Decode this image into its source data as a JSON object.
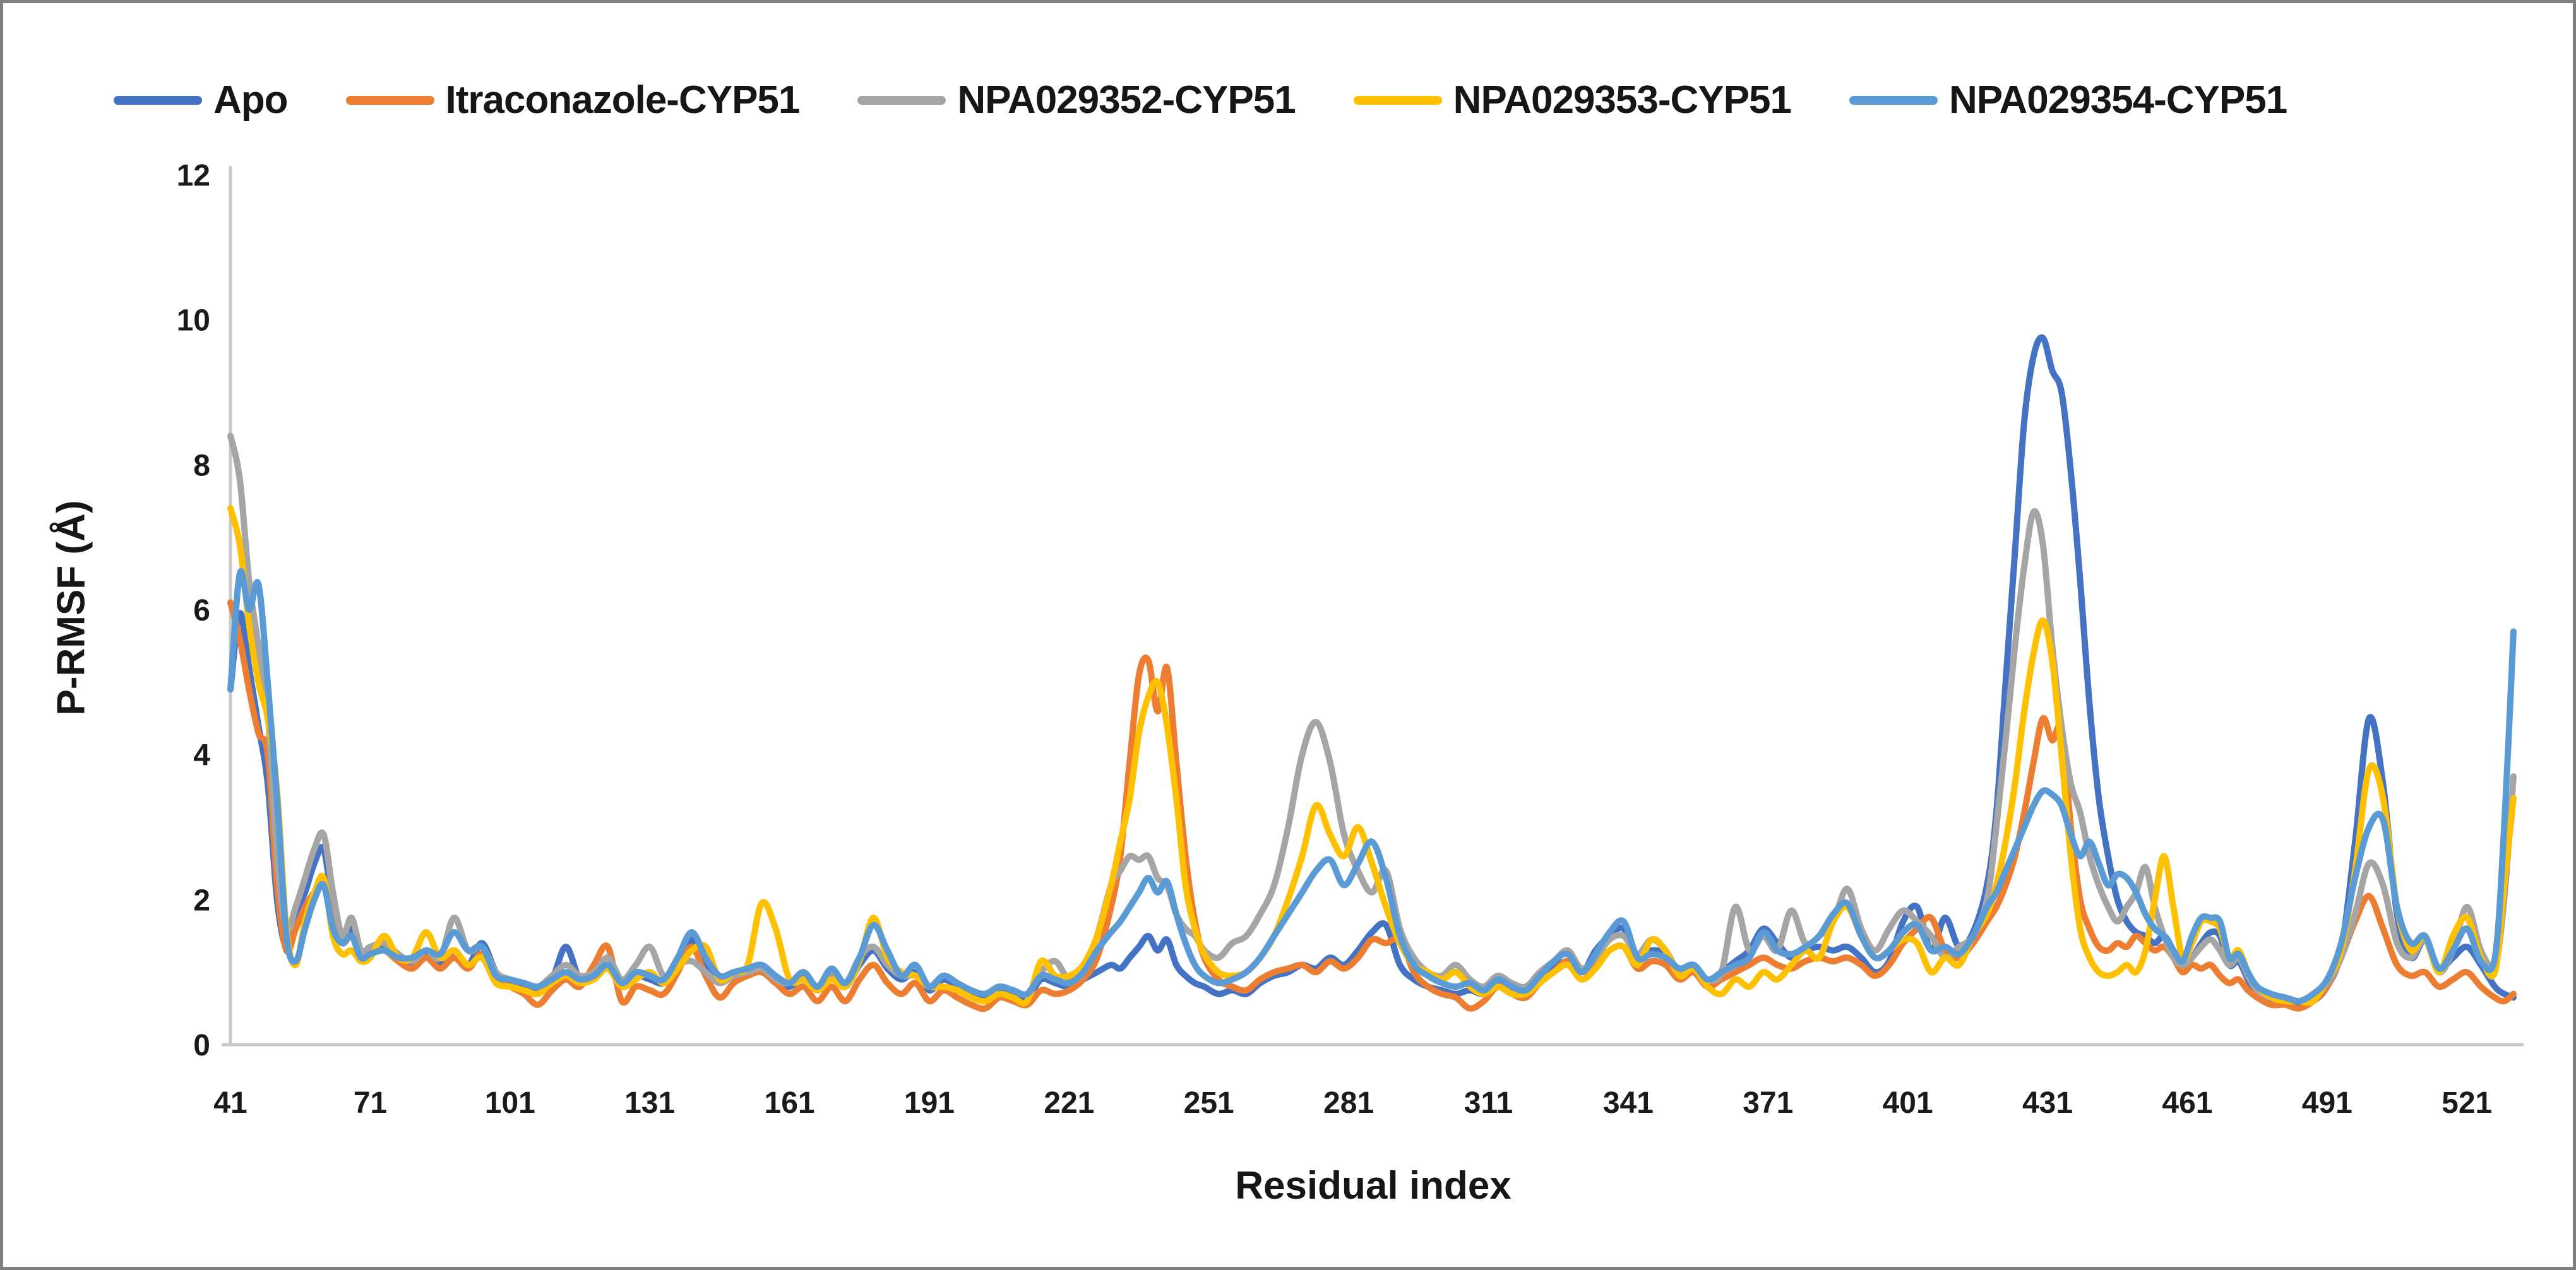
{
  "figure": {
    "type_note": "Protein residue fluctuation line chart (no title shown)",
    "border_color": "#7f7f7f",
    "background": "#ffffff",
    "axis_line_color": "#c9c9c9",
    "text_color": "#161616"
  },
  "legend": {
    "position": "top",
    "items": [
      {
        "label": "Apo",
        "color": "#4472C4"
      },
      {
        "label": "Itraconazole-CYP51",
        "color": "#ED7D31"
      },
      {
        "label": "NPA029352-CYP51",
        "color": "#A5A5A5"
      },
      {
        "label": "NPA029353-CYP51",
        "color": "#FFC000"
      },
      {
        "label": "NPA029354-CYP51",
        "color": "#5B9BD5"
      }
    ]
  },
  "axes": {
    "x": {
      "title": "Residual index",
      "ticks": [
        41,
        71,
        101,
        131,
        161,
        191,
        221,
        251,
        281,
        311,
        341,
        371,
        401,
        431,
        461,
        491,
        521
      ],
      "min": 41,
      "max": 531
    },
    "y": {
      "title": "P-RMSF (Å)",
      "ticks": [
        0,
        2,
        4,
        6,
        8,
        10,
        12
      ],
      "min": 0,
      "max": 12
    }
  },
  "chart_data": {
    "type": "line",
    "title": "",
    "xlabel": "Residual index",
    "ylabel": "P-RMSF (Å)",
    "xlim": [
      41,
      531
    ],
    "ylim": [
      0,
      12
    ],
    "grid": false,
    "legend_position": "top",
    "x": [
      41,
      43,
      45,
      47,
      49,
      51,
      53,
      55,
      57,
      59,
      61,
      63,
      65,
      67,
      69,
      71,
      74,
      77,
      80,
      83,
      86,
      89,
      92,
      95,
      98,
      101,
      104,
      107,
      110,
      113,
      116,
      119,
      122,
      125,
      128,
      131,
      134,
      137,
      140,
      143,
      146,
      149,
      152,
      155,
      158,
      161,
      164,
      167,
      170,
      173,
      176,
      179,
      182,
      185,
      188,
      191,
      194,
      197,
      200,
      203,
      206,
      209,
      212,
      215,
      218,
      221,
      224,
      227,
      230,
      232,
      234,
      236,
      238,
      240,
      242,
      244,
      246,
      248,
      250,
      253,
      256,
      259,
      262,
      265,
      268,
      271,
      274,
      277,
      280,
      283,
      286,
      289,
      292,
      295,
      298,
      301,
      304,
      307,
      310,
      313,
      316,
      319,
      322,
      325,
      328,
      331,
      334,
      337,
      340,
      343,
      346,
      349,
      352,
      355,
      358,
      361,
      364,
      367,
      370,
      373,
      376,
      379,
      382,
      385,
      388,
      391,
      394,
      397,
      400,
      403,
      406,
      409,
      412,
      415,
      418,
      420,
      422,
      424,
      426,
      428,
      430,
      432,
      434,
      436,
      438,
      440,
      442,
      444,
      446,
      448,
      450,
      452,
      454,
      456,
      458,
      460,
      462,
      464,
      466,
      468,
      470,
      472,
      474,
      476,
      479,
      482,
      485,
      488,
      491,
      494,
      497,
      500,
      503,
      506,
      509,
      512,
      515,
      518,
      521,
      524,
      527,
      529,
      531
    ],
    "series": [
      {
        "name": "Apo",
        "color": "#4472C4",
        "values": [
          4.9,
          5.95,
          5.2,
          4.4,
          3.6,
          2.0,
          1.35,
          1.8,
          2.1,
          2.5,
          2.7,
          1.9,
          1.45,
          1.6,
          1.25,
          1.3,
          1.35,
          1.2,
          1.1,
          1.25,
          1.1,
          1.3,
          1.1,
          1.4,
          1.0,
          0.85,
          0.8,
          0.75,
          0.9,
          1.35,
          0.9,
          0.95,
          1.1,
          0.8,
          0.95,
          0.9,
          0.85,
          1.05,
          1.45,
          1.1,
          0.9,
          0.95,
          1.0,
          1.0,
          0.9,
          0.8,
          0.95,
          0.75,
          0.95,
          0.8,
          1.1,
          1.3,
          1.05,
          0.9,
          1.0,
          0.75,
          0.9,
          0.8,
          0.7,
          0.65,
          0.75,
          0.7,
          0.65,
          0.9,
          0.85,
          0.8,
          0.9,
          1.0,
          1.1,
          1.05,
          1.2,
          1.35,
          1.5,
          1.3,
          1.45,
          1.1,
          0.95,
          0.85,
          0.8,
          0.7,
          0.75,
          0.7,
          0.85,
          0.95,
          1.0,
          1.1,
          1.05,
          1.2,
          1.1,
          1.3,
          1.55,
          1.65,
          1.1,
          0.9,
          0.8,
          0.75,
          0.7,
          0.75,
          0.7,
          0.85,
          0.75,
          0.7,
          0.9,
          1.1,
          1.3,
          1.0,
          1.3,
          1.5,
          1.6,
          1.2,
          1.3,
          1.25,
          1.0,
          1.1,
          0.9,
          1.0,
          1.15,
          1.3,
          1.6,
          1.4,
          1.2,
          1.3,
          1.35,
          1.3,
          1.35,
          1.2,
          1.0,
          1.15,
          1.7,
          1.9,
          1.3,
          1.75,
          1.35,
          1.55,
          2.2,
          3.2,
          5.0,
          6.8,
          8.6,
          9.5,
          9.75,
          9.3,
          9.0,
          7.9,
          6.4,
          4.7,
          3.4,
          2.6,
          2.0,
          1.7,
          1.55,
          1.5,
          1.4,
          1.5,
          1.3,
          1.1,
          1.2,
          1.4,
          1.55,
          1.5,
          1.1,
          1.15,
          0.9,
          0.7,
          0.6,
          0.6,
          0.55,
          0.6,
          0.8,
          1.3,
          2.8,
          4.5,
          3.6,
          1.8,
          1.2,
          1.45,
          1.05,
          1.2,
          1.35,
          1.1,
          0.8,
          0.7,
          0.65
        ]
      },
      {
        "name": "Itraconazole-CYP51",
        "color": "#ED7D31",
        "values": [
          6.1,
          5.6,
          4.9,
          4.3,
          4.0,
          2.2,
          1.3,
          1.6,
          1.9,
          2.1,
          2.2,
          1.7,
          1.4,
          1.5,
          1.2,
          1.25,
          1.3,
          1.15,
          1.05,
          1.2,
          1.05,
          1.2,
          1.05,
          1.25,
          0.9,
          0.8,
          0.7,
          0.55,
          0.75,
          0.9,
          0.8,
          1.1,
          1.35,
          0.6,
          0.8,
          0.75,
          0.7,
          1.0,
          1.35,
          0.95,
          0.65,
          0.85,
          0.95,
          1.0,
          0.85,
          0.7,
          0.8,
          0.6,
          0.8,
          0.6,
          0.9,
          1.1,
          0.85,
          0.7,
          0.85,
          0.6,
          0.75,
          0.65,
          0.55,
          0.5,
          0.65,
          0.6,
          0.55,
          0.75,
          0.7,
          0.75,
          0.9,
          1.2,
          1.9,
          2.6,
          3.9,
          5.1,
          5.3,
          4.6,
          5.2,
          3.9,
          2.6,
          1.7,
          1.2,
          0.9,
          0.8,
          0.75,
          0.9,
          1.0,
          1.05,
          1.1,
          1.0,
          1.15,
          1.05,
          1.2,
          1.45,
          1.4,
          1.45,
          1.0,
          0.8,
          0.7,
          0.65,
          0.5,
          0.6,
          0.8,
          0.7,
          0.65,
          0.85,
          1.0,
          1.15,
          0.9,
          1.1,
          1.3,
          1.35,
          1.05,
          1.15,
          1.1,
          0.9,
          1.0,
          0.8,
          0.9,
          1.0,
          1.1,
          1.2,
          1.1,
          1.05,
          1.15,
          1.2,
          1.15,
          1.2,
          1.1,
          0.95,
          1.1,
          1.4,
          1.6,
          1.75,
          1.3,
          1.2,
          1.4,
          1.7,
          1.9,
          2.2,
          2.6,
          3.2,
          3.9,
          4.5,
          4.2,
          4.35,
          3.0,
          2.0,
          1.6,
          1.35,
          1.3,
          1.4,
          1.35,
          1.5,
          1.4,
          1.3,
          1.35,
          1.2,
          1.0,
          1.1,
          1.05,
          1.1,
          0.95,
          0.85,
          0.9,
          0.75,
          0.65,
          0.55,
          0.55,
          0.5,
          0.6,
          0.8,
          1.2,
          1.7,
          2.05,
          1.6,
          1.1,
          0.95,
          1.0,
          0.8,
          0.9,
          1.0,
          0.8,
          0.65,
          0.6,
          0.7
        ]
      },
      {
        "name": "NPA029352-CYP51",
        "color": "#A5A5A5",
        "values": [
          8.4,
          7.8,
          6.4,
          5.5,
          4.6,
          2.6,
          1.6,
          1.9,
          2.3,
          2.7,
          2.9,
          2.1,
          1.5,
          1.75,
          1.3,
          1.35,
          1.4,
          1.25,
          1.15,
          1.3,
          1.2,
          1.75,
          1.3,
          1.35,
          1.0,
          0.9,
          0.85,
          0.8,
          0.95,
          1.1,
          0.95,
          1.0,
          1.2,
          0.9,
          1.1,
          1.35,
          0.95,
          1.1,
          1.15,
          1.0,
          0.85,
          0.95,
          1.0,
          1.05,
          0.9,
          0.85,
          1.0,
          0.8,
          1.0,
          0.85,
          1.2,
          1.35,
          1.1,
          0.95,
          0.95,
          0.8,
          0.95,
          0.85,
          0.75,
          0.7,
          0.8,
          0.75,
          0.7,
          1.0,
          1.15,
          0.9,
          1.0,
          1.5,
          2.2,
          2.4,
          2.6,
          2.55,
          2.6,
          2.3,
          2.2,
          1.8,
          1.6,
          1.5,
          1.3,
          1.2,
          1.4,
          1.5,
          1.8,
          2.2,
          3.0,
          4.0,
          4.45,
          3.9,
          2.9,
          2.4,
          2.1,
          2.4,
          1.6,
          1.2,
          1.0,
          0.95,
          1.1,
          0.9,
          0.8,
          0.95,
          0.85,
          0.8,
          1.0,
          1.15,
          1.3,
          1.05,
          1.2,
          1.45,
          1.5,
          1.25,
          1.45,
          1.3,
          1.0,
          1.05,
          0.9,
          1.0,
          1.9,
          1.3,
          1.5,
          1.3,
          1.85,
          1.4,
          1.5,
          1.7,
          2.15,
          1.6,
          1.3,
          1.6,
          1.85,
          1.7,
          1.5,
          1.2,
          1.35,
          1.5,
          2.0,
          3.0,
          4.2,
          5.5,
          6.6,
          7.35,
          6.9,
          5.5,
          4.4,
          3.6,
          3.2,
          2.6,
          2.2,
          1.9,
          1.7,
          1.9,
          2.1,
          2.45,
          1.9,
          1.5,
          1.2,
          1.1,
          1.2,
          1.35,
          1.45,
          1.3,
          1.1,
          1.2,
          0.95,
          0.75,
          0.65,
          0.65,
          0.6,
          0.65,
          0.85,
          1.2,
          1.8,
          2.5,
          2.2,
          1.4,
          1.2,
          1.45,
          1.0,
          1.3,
          1.9,
          1.3,
          1.1,
          2.0,
          3.7
        ]
      },
      {
        "name": "NPA029353-CYP51",
        "color": "#FFC000",
        "values": [
          7.4,
          6.9,
          5.8,
          5.0,
          4.5,
          3.5,
          1.6,
          1.1,
          1.7,
          2.1,
          2.3,
          1.5,
          1.25,
          1.3,
          1.15,
          1.2,
          1.5,
          1.2,
          1.2,
          1.55,
          1.2,
          1.3,
          1.1,
          1.2,
          0.85,
          0.8,
          0.75,
          0.7,
          0.85,
          0.95,
          0.85,
          0.9,
          1.05,
          0.8,
          0.9,
          1.0,
          0.85,
          1.05,
          1.3,
          1.35,
          0.9,
          1.0,
          1.1,
          1.95,
          1.6,
          0.9,
          0.9,
          0.75,
          0.9,
          0.8,
          1.15,
          1.75,
          1.2,
          1.0,
          0.95,
          0.8,
          0.8,
          0.75,
          0.65,
          0.6,
          0.7,
          0.65,
          0.6,
          1.15,
          0.95,
          0.95,
          1.1,
          1.5,
          2.2,
          2.8,
          3.4,
          4.3,
          4.8,
          5.0,
          4.4,
          3.4,
          2.2,
          1.6,
          1.25,
          1.0,
          0.95,
          1.0,
          1.2,
          1.5,
          2.0,
          2.6,
          3.3,
          2.9,
          2.6,
          3.0,
          2.5,
          1.9,
          1.4,
          1.1,
          1.0,
          0.9,
          1.0,
          0.8,
          0.7,
          0.8,
          0.7,
          0.7,
          0.85,
          1.0,
          1.1,
          0.9,
          1.05,
          1.3,
          1.35,
          1.1,
          1.45,
          1.3,
          0.95,
          1.05,
          0.8,
          0.7,
          0.9,
          0.8,
          1.0,
          0.9,
          1.1,
          1.3,
          1.2,
          1.7,
          1.9,
          1.5,
          1.2,
          1.3,
          1.45,
          1.4,
          1.0,
          1.2,
          1.1,
          1.5,
          1.8,
          2.2,
          2.8,
          3.6,
          4.6,
          5.4,
          5.85,
          5.3,
          4.0,
          2.6,
          1.6,
          1.2,
          1.0,
          0.95,
          1.0,
          1.1,
          1.0,
          1.3,
          2.0,
          2.6,
          1.9,
          1.2,
          1.4,
          1.7,
          1.7,
          1.6,
          1.2,
          1.3,
          1.0,
          0.8,
          0.65,
          0.6,
          0.6,
          0.6,
          0.9,
          1.3,
          2.4,
          3.8,
          3.4,
          1.9,
          1.3,
          1.5,
          1.0,
          1.5,
          1.75,
          1.2,
          1.0,
          2.2,
          3.4
        ]
      },
      {
        "name": "NPA029354-CYP51",
        "color": "#5B9BD5",
        "values": [
          4.9,
          6.5,
          6.0,
          6.35,
          5.0,
          3.4,
          1.5,
          1.15,
          1.6,
          2.0,
          2.2,
          1.6,
          1.4,
          1.5,
          1.2,
          1.25,
          1.3,
          1.2,
          1.2,
          1.3,
          1.25,
          1.55,
          1.3,
          1.35,
          0.95,
          0.9,
          0.85,
          0.8,
          0.9,
          1.0,
          0.9,
          0.95,
          1.1,
          0.85,
          1.0,
          0.95,
          0.9,
          1.2,
          1.55,
          1.2,
          0.95,
          1.0,
          1.05,
          1.1,
          0.95,
          0.85,
          1.0,
          0.8,
          1.05,
          0.85,
          1.2,
          1.65,
          1.3,
          0.95,
          1.1,
          0.8,
          0.95,
          0.85,
          0.75,
          0.7,
          0.8,
          0.75,
          0.7,
          0.95,
          0.9,
          0.85,
          1.0,
          1.3,
          1.55,
          1.7,
          1.9,
          2.1,
          2.3,
          2.1,
          2.25,
          1.8,
          1.4,
          1.1,
          0.95,
          0.85,
          0.9,
          1.0,
          1.2,
          1.5,
          1.8,
          2.1,
          2.4,
          2.55,
          2.2,
          2.5,
          2.8,
          2.3,
          1.5,
          1.1,
          0.95,
          0.85,
          0.8,
          0.85,
          0.75,
          0.9,
          0.8,
          0.75,
          0.95,
          1.15,
          1.25,
          1.0,
          1.25,
          1.55,
          1.7,
          1.2,
          1.25,
          1.2,
          1.05,
          1.1,
          0.9,
          1.0,
          1.1,
          1.2,
          1.55,
          1.3,
          1.25,
          1.35,
          1.5,
          1.8,
          1.95,
          1.5,
          1.2,
          1.3,
          1.55,
          1.65,
          1.3,
          1.35,
          1.25,
          1.5,
          1.9,
          2.1,
          2.4,
          2.7,
          3.0,
          3.3,
          3.5,
          3.45,
          3.3,
          2.9,
          2.6,
          2.8,
          2.5,
          2.2,
          2.35,
          2.3,
          2.1,
          1.8,
          1.6,
          1.5,
          1.3,
          1.15,
          1.5,
          1.75,
          1.75,
          1.7,
          1.2,
          1.25,
          1.0,
          0.8,
          0.7,
          0.65,
          0.6,
          0.7,
          0.9,
          1.4,
          2.3,
          3.0,
          3.1,
          1.9,
          1.4,
          1.5,
          1.05,
          1.3,
          1.6,
          1.15,
          1.2,
          3.0,
          5.7
        ]
      }
    ]
  }
}
